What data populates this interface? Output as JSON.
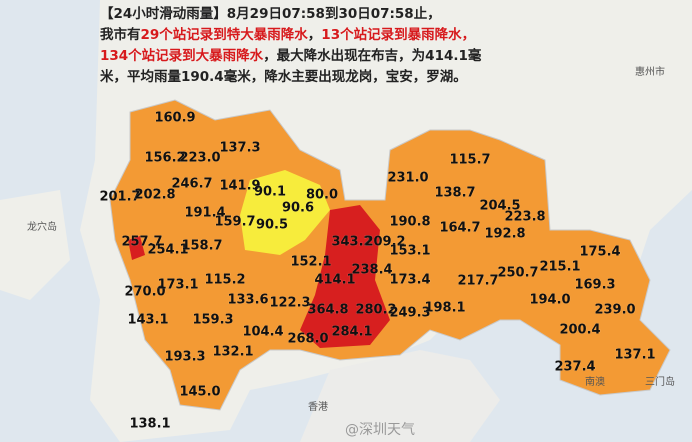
{
  "header": {
    "line1": "【24小时滑动雨量】8月29日07:58到30日07:58止，",
    "line2": [
      "我市有",
      "29个站记录到特大暴雨降水",
      "，",
      "13个站记录到暴雨降水，"
    ],
    "line3": [
      "134个站记录到大暴雨降水",
      "，最大降水出现在布吉，为414.1毫"
    ],
    "line4": "米，平均雨量190.4毫米，降水主要出现龙岗，宝安，罗湖。"
  },
  "places": [
    "龙穴岛",
    "惠州市",
    "香港",
    "三门岛",
    "南澳"
  ],
  "watermark": "@深圳天气",
  "stations": [
    "160.9",
    "156.2",
    "223.0",
    "137.3",
    "201.7",
    "202.8",
    "246.7",
    "141.9",
    "90.1",
    "80.0",
    "90.6",
    "191.4",
    "159.7",
    "90.5",
    "257.7",
    "254.1",
    "158.7",
    "343.2",
    "209.2",
    "152.1",
    "115.2",
    "414.1",
    "238.4",
    "173.4",
    "270.0",
    "173.1",
    "133.6",
    "122.3",
    "143.1",
    "159.3",
    "364.8",
    "280.2",
    "249.3",
    "198.1",
    "104.4",
    "268.0",
    "284.1",
    "132.1",
    "193.3",
    "145.0",
    "138.1",
    "231.0",
    "115.7",
    "138.7",
    "204.5",
    "223.8",
    "164.7",
    "192.8",
    "190.8",
    "153.1",
    "217.7",
    "250.7",
    "215.1",
    "175.4",
    "169.3",
    "194.0",
    "239.0",
    "200.4",
    "237.4",
    "137.1"
  ]
}
